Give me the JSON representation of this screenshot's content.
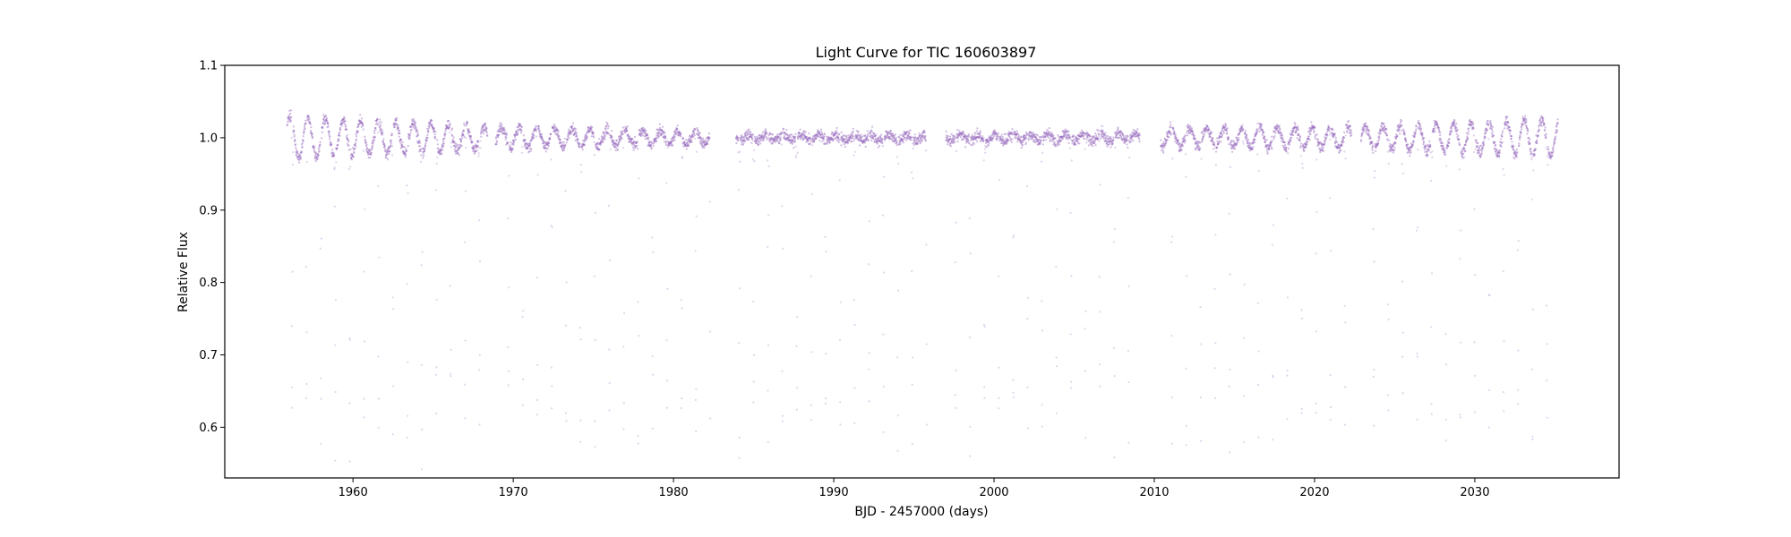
{
  "chart_data": {
    "type": "scatter",
    "title": "Light Curve for TIC 160603897",
    "xlabel": "BJD - 2457000 (days)",
    "ylabel": "Relative Flux",
    "xlim": [
      1952,
      2039
    ],
    "ylim": [
      0.53,
      1.1
    ],
    "xticks": [
      1960,
      1970,
      1980,
      1990,
      2000,
      2010,
      2020,
      2030
    ],
    "xtick_labels": [
      "1960",
      "1970",
      "1980",
      "1990",
      "2000",
      "2010",
      "2020",
      "2030"
    ],
    "yticks": [
      0.6,
      0.7,
      0.8,
      0.9,
      1.0,
      1.1
    ],
    "ytick_labels": [
      "0.6",
      "0.7",
      "0.8",
      "0.9",
      "1.0",
      "1.1"
    ],
    "grid": false,
    "legend": "none",
    "marker_color": "#9467bd",
    "segments": [
      {
        "x_start": 1955.9,
        "x_end": 1968.4,
        "baseline": 1.0,
        "amp_start": 0.03,
        "amp_end": 0.015,
        "rot_period": 1.1
      },
      {
        "x_start": 1968.9,
        "x_end": 1982.3,
        "baseline": 1.0,
        "amp_start": 0.015,
        "amp_end": 0.008,
        "rot_period": 1.1
      },
      {
        "x_start": 1983.9,
        "x_end": 1995.8,
        "baseline": 1.0,
        "amp_start": 0.004,
        "amp_end": 0.004,
        "rot_period": 1.1
      },
      {
        "x_start": 1997.0,
        "x_end": 2009.1,
        "baseline": 1.0,
        "amp_start": 0.004,
        "amp_end": 0.006,
        "rot_period": 1.1
      },
      {
        "x_start": 2010.4,
        "x_end": 2022.3,
        "baseline": 1.0,
        "amp_start": 0.012,
        "amp_end": 0.015,
        "rot_period": 1.1
      },
      {
        "x_start": 2022.9,
        "x_end": 2035.2,
        "baseline": 1.0,
        "amp_start": 0.015,
        "amp_end": 0.025,
        "rot_period": 1.1
      }
    ],
    "transits": {
      "period": 0.9,
      "phase_x": 1956.2,
      "depth_min": 0.55
    }
  }
}
